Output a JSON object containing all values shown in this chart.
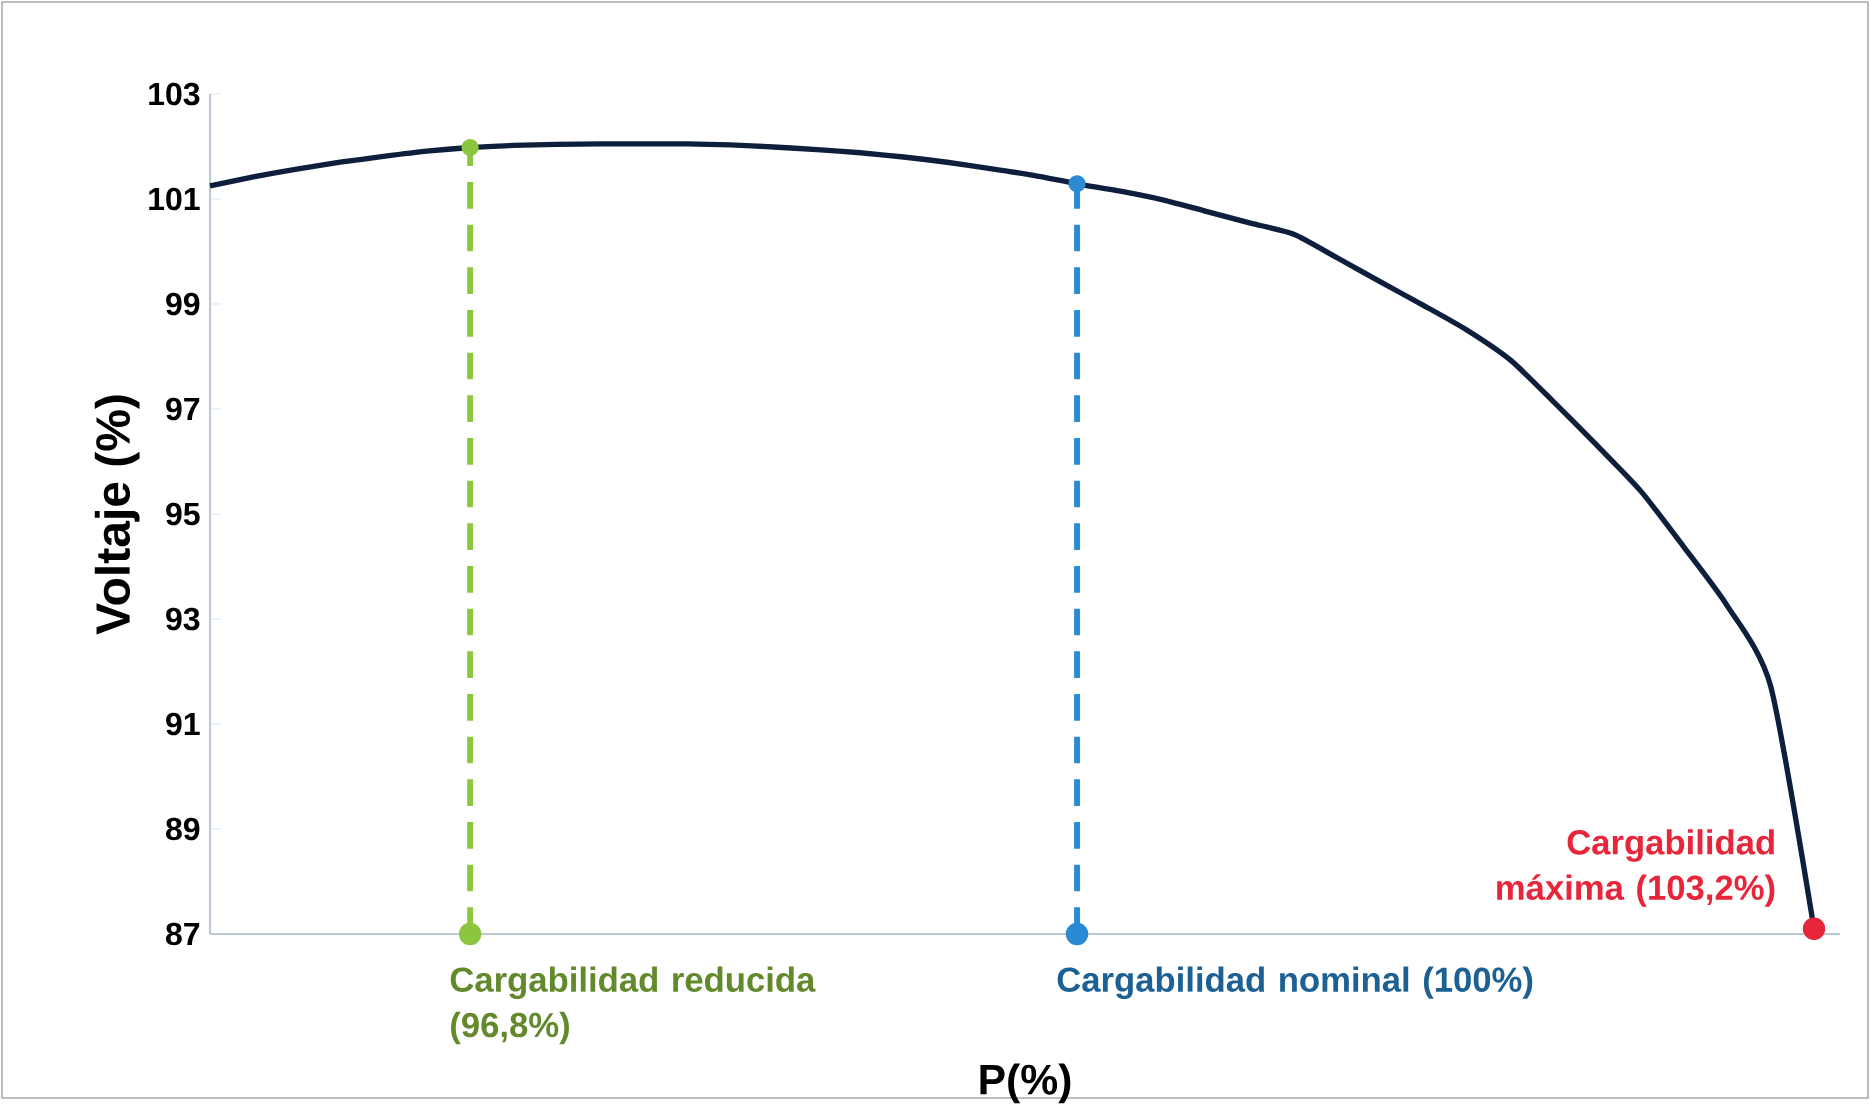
{
  "chart_data": {
    "type": "line",
    "xlabel": "P(%)",
    "ylabel": "Voltaje (%)",
    "categories": [
      null,
      null,
      null,
      null,
      null,
      null,
      null,
      null,
      null,
      null,
      null,
      null,
      null,
      null,
      null,
      null,
      null,
      null,
      null,
      null,
      null,
      null,
      null,
      null,
      null,
      null,
      null,
      null,
      null,
      null,
      null,
      null,
      null,
      null,
      null,
      null,
      null,
      null
    ],
    "series": [
      {
        "color": "#0d1f3c",
        "line_style": "solid",
        "values": [
          101.25,
          101.42,
          101.57,
          101.7,
          101.81,
          101.91,
          101.98,
          102.02,
          102.04,
          102.05,
          102.05,
          102.05,
          102.03,
          101.99,
          101.94,
          101.88,
          101.8,
          101.7,
          101.58,
          101.45,
          101.29,
          101.15,
          100.98,
          100.76,
          100.54,
          100.33,
          99.88,
          99.42,
          98.97,
          98.5,
          97.93,
          97.13,
          96.3,
          95.44,
          94.37,
          93.25,
          91.72,
          87.1
        ]
      },
      {
        "type": "scatter",
        "color": "#8cc63f",
        "marker": "circle",
        "values": [
          null,
          null,
          null,
          null,
          null,
          null,
          87,
          null,
          null,
          null,
          null,
          null,
          null,
          null,
          null,
          null,
          null,
          null,
          null,
          null,
          null,
          null,
          null,
          null,
          null,
          null,
          null,
          null,
          null,
          null,
          null,
          null,
          null,
          null,
          null,
          null,
          null,
          null
        ]
      },
      {
        "type": "scatter",
        "color": "#2a8ad4",
        "marker": "circle",
        "values": [
          null,
          null,
          null,
          null,
          null,
          null,
          null,
          null,
          null,
          null,
          null,
          null,
          null,
          null,
          null,
          null,
          null,
          null,
          null,
          null,
          87,
          null,
          null,
          null,
          null,
          null,
          null,
          null,
          null,
          null,
          null,
          null,
          null,
          null,
          null,
          null,
          null,
          null
        ]
      },
      {
        "type": "scatter",
        "color": "#e8263b",
        "marker": "circle",
        "values": [
          null,
          null,
          null,
          null,
          null,
          null,
          null,
          null,
          null,
          null,
          null,
          null,
          null,
          null,
          null,
          null,
          null,
          null,
          null,
          null,
          null,
          null,
          null,
          null,
          null,
          null,
          null,
          null,
          null,
          null,
          null,
          null,
          null,
          null,
          null,
          null,
          null,
          87.1
        ]
      }
    ],
    "annotations": [
      "Cargabilidad reducida (96,8%)",
      "Cargabilidad nominal (100%)",
      "Cargabilidad máxima (103,2%)"
    ],
    "ylim": [
      87,
      103
    ],
    "yticks": [
      87,
      89,
      91,
      93,
      95,
      97,
      99,
      101,
      103
    ],
    "tick_labels": "y"
  }
}
